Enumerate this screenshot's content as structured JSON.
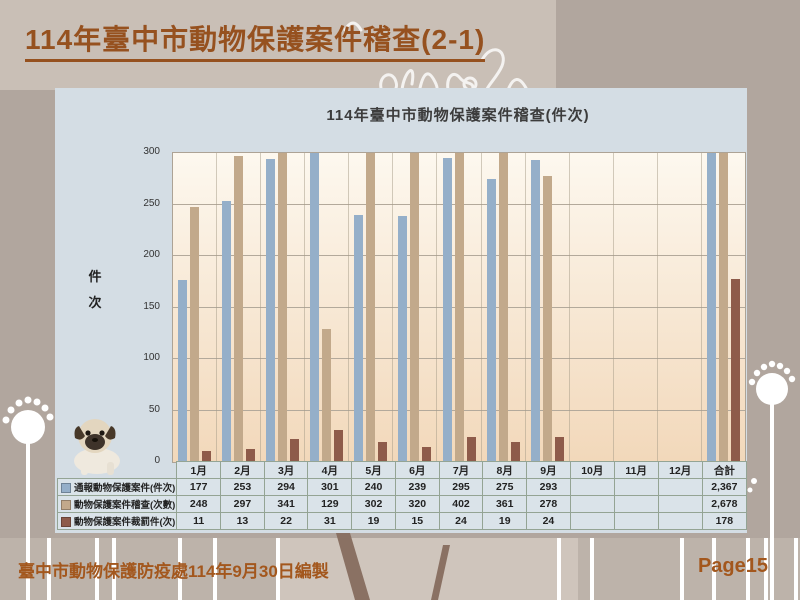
{
  "slide": {
    "title": "114年臺中市動物保護案件稽查(2-1)",
    "footer": "臺中市動物保護防疫處114年9月30日編製",
    "page": "Page15"
  },
  "chart_data": {
    "type": "bar",
    "title": "114年臺中市動物保護案件稽查(件次)",
    "ylabel": "件次",
    "ylim": [
      0,
      300
    ],
    "ytick_interval": 50,
    "grid": true,
    "legend_position": "left-of-data-table",
    "categories": [
      "1月",
      "2月",
      "3月",
      "4月",
      "5月",
      "6月",
      "7月",
      "8月",
      "9月",
      "10月",
      "11月",
      "12月",
      "合計"
    ],
    "series": [
      {
        "name": "通報動物保護案件(件次)",
        "color": "#95AFC9",
        "values": [
          177,
          253,
          294,
          301,
          240,
          239,
          295,
          275,
          293,
          null,
          null,
          null,
          2367
        ]
      },
      {
        "name": "動物保護案件稽查(次數)",
        "color": "#C2A98B",
        "values": [
          248,
          297,
          341,
          129,
          302,
          320,
          402,
          361,
          278,
          null,
          null,
          null,
          2678
        ]
      },
      {
        "name": "動物保護案件裁罰件(次)",
        "color": "#8E5B4A",
        "values": [
          11,
          13,
          22,
          31,
          19,
          15,
          24,
          19,
          24,
          null,
          null,
          null,
          178
        ]
      }
    ]
  }
}
